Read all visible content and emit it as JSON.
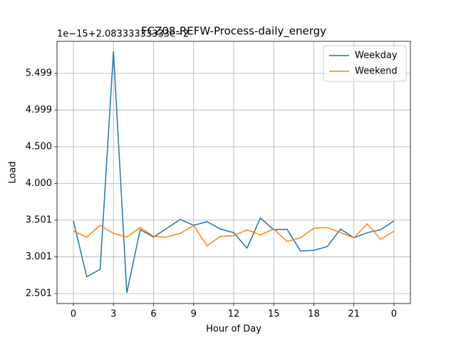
{
  "chart_data": {
    "type": "line",
    "title": "FCZ08-REFW-Process-daily_energy",
    "offset_text": "1e−15+2.08333333333e−2",
    "x_label": "Hour of Day",
    "y_label": "Load",
    "x": [
      0,
      1,
      2,
      3,
      4,
      5,
      6,
      7,
      8,
      9,
      10,
      11,
      12,
      13,
      14,
      15,
      16,
      17,
      18,
      19,
      20,
      21,
      22,
      23,
      24
    ],
    "series": [
      {
        "name": "Weekday",
        "color": "#1f77b4",
        "values": [
          3.49,
          2.73,
          2.83,
          5.8,
          2.51,
          3.37,
          3.27,
          3.39,
          3.51,
          3.43,
          3.48,
          3.38,
          3.33,
          3.12,
          3.53,
          3.37,
          3.375,
          3.08,
          3.09,
          3.14,
          3.38,
          3.26,
          3.33,
          3.37,
          3.49
        ]
      },
      {
        "name": "Weekend",
        "color": "#ff7f0e",
        "values": [
          3.35,
          3.27,
          3.43,
          3.32,
          3.27,
          3.4,
          3.28,
          3.27,
          3.32,
          3.43,
          3.15,
          3.28,
          3.29,
          3.37,
          3.3,
          3.38,
          3.21,
          3.26,
          3.39,
          3.4,
          3.33,
          3.26,
          3.45,
          3.24,
          3.35
        ]
      }
    ],
    "xlim": [
      -1.227,
      25.23
    ],
    "xticks": [
      0,
      3,
      6,
      9,
      12,
      15,
      18,
      21,
      {
        "value": 24,
        "label": "0"
      }
    ],
    "ylim": [
      2.365,
      5.936
    ],
    "yticks": [
      2.501,
      3.001,
      {
        "value": 3.501,
        "label": "3.501"
      },
      {
        "value": 4.0,
        "label": "4.000"
      },
      {
        "value": 4.5,
        "label": "4.500"
      },
      4.999,
      5.499
    ],
    "grid": true,
    "legend": "upper right"
  }
}
